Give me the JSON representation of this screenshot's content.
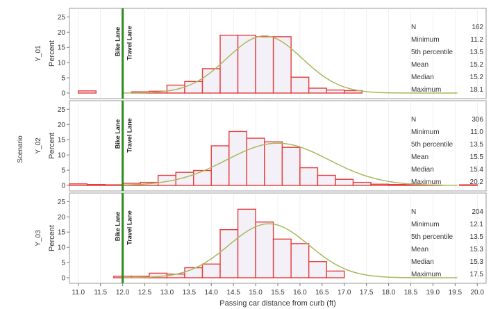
{
  "chart_data": {
    "type": "bar",
    "xlabel": "Passing car distance from curb (ft)",
    "scenario_label": "Scenario",
    "ylabel": "Percent",
    "x_ticks": [
      "11.0",
      "11.5",
      "12.0",
      "12.5",
      "13.0",
      "13.5",
      "14.0",
      "14.5",
      "15.0",
      "15.5",
      "16.0",
      "16.5",
      "17.0",
      "17.5",
      "18.0",
      "18.5",
      "19.0",
      "19.5",
      "20.0"
    ],
    "xlim": [
      10.8,
      20.2
    ],
    "ylim": [
      0,
      26
    ],
    "y_ticks": [
      0,
      5,
      10,
      15,
      20,
      25
    ],
    "bin_width": 0.4,
    "lane_line_x": 12.0,
    "lane_left_label": "Bike Lane",
    "lane_right_label": "Travel Lane",
    "colors": {
      "bar_edge": "#e63c3c",
      "bar_fill": "#f4f0f8",
      "curve": "#a8b85a",
      "lane_line": "#2e8b1e",
      "panel_border": "#9a9a9a",
      "grid": "#e6e6e6"
    },
    "panels": [
      {
        "name": "Y_01",
        "bins": [
          {
            "x": 11.0,
            "y": 0.7
          },
          {
            "x": 12.2,
            "y": 0.4
          },
          {
            "x": 12.6,
            "y": 0.6
          },
          {
            "x": 13.0,
            "y": 2.6
          },
          {
            "x": 13.4,
            "y": 3.8
          },
          {
            "x": 13.8,
            "y": 8.0
          },
          {
            "x": 14.2,
            "y": 19.0
          },
          {
            "x": 14.6,
            "y": 19.0
          },
          {
            "x": 15.0,
            "y": 18.5
          },
          {
            "x": 15.4,
            "y": 18.5
          },
          {
            "x": 15.8,
            "y": 5.2
          },
          {
            "x": 16.2,
            "y": 1.6
          },
          {
            "x": 16.6,
            "y": 1.0
          },
          {
            "x": 17.0,
            "y": 0.8
          }
        ],
        "curve": {
          "mean": 15.2,
          "sd": 0.85
        },
        "stats": [
          {
            "label": "N",
            "value": "162"
          },
          {
            "label": "Minimum",
            "value": "11.2"
          },
          {
            "label": "5th percentile",
            "value": "13.5"
          },
          {
            "label": "Mean",
            "value": "15.2"
          },
          {
            "label": "Median",
            "value": "15.2"
          },
          {
            "label": "Maximum",
            "value": "18.1"
          }
        ]
      },
      {
        "name": "Y_02",
        "bins": [
          {
            "x": 10.8,
            "y": 0.5
          },
          {
            "x": 11.2,
            "y": 0.3
          },
          {
            "x": 11.6,
            "y": 0.2
          },
          {
            "x": 12.0,
            "y": 0.7
          },
          {
            "x": 12.4,
            "y": 1.0
          },
          {
            "x": 12.8,
            "y": 3.3
          },
          {
            "x": 13.2,
            "y": 4.3
          },
          {
            "x": 13.6,
            "y": 4.9
          },
          {
            "x": 14.0,
            "y": 13.0
          },
          {
            "x": 14.4,
            "y": 17.7
          },
          {
            "x": 14.8,
            "y": 15.5
          },
          {
            "x": 15.2,
            "y": 14.3
          },
          {
            "x": 15.6,
            "y": 12.5
          },
          {
            "x": 16.0,
            "y": 5.8
          },
          {
            "x": 16.4,
            "y": 3.3
          },
          {
            "x": 16.8,
            "y": 2.0
          },
          {
            "x": 17.2,
            "y": 1.0
          },
          {
            "x": 17.6,
            "y": 0.4
          },
          {
            "x": 18.0,
            "y": 0.3
          },
          {
            "x": 18.4,
            "y": 0.2
          },
          {
            "x": 18.8,
            "y": 0.1
          },
          {
            "x": 19.6,
            "y": 0.2
          }
        ],
        "curve": {
          "mean": 15.5,
          "sd": 1.15
        },
        "stats": [
          {
            "label": "N",
            "value": "306"
          },
          {
            "label": "Minimum",
            "value": "11.0"
          },
          {
            "label": "5th percentile",
            "value": "13.5"
          },
          {
            "label": "Mean",
            "value": "15.5"
          },
          {
            "label": "Median",
            "value": "15.4"
          },
          {
            "label": "Maximum",
            "value": "20.2"
          }
        ]
      },
      {
        "name": "Y_03",
        "bins": [
          {
            "x": 11.8,
            "y": 0.5
          },
          {
            "x": 12.2,
            "y": 0.5
          },
          {
            "x": 12.6,
            "y": 1.5
          },
          {
            "x": 13.0,
            "y": 1.2
          },
          {
            "x": 13.4,
            "y": 3.3
          },
          {
            "x": 13.8,
            "y": 4.5
          },
          {
            "x": 14.2,
            "y": 15.8
          },
          {
            "x": 14.6,
            "y": 22.5
          },
          {
            "x": 15.0,
            "y": 18.3
          },
          {
            "x": 15.4,
            "y": 12.7
          },
          {
            "x": 15.8,
            "y": 11.2
          },
          {
            "x": 16.2,
            "y": 5.3
          },
          {
            "x": 16.6,
            "y": 2.2
          }
        ],
        "curve": {
          "mean": 15.3,
          "sd": 0.9
        },
        "stats": [
          {
            "label": "N",
            "value": "204"
          },
          {
            "label": "Minimum",
            "value": "12.1"
          },
          {
            "label": "5th percentile",
            "value": "13.5"
          },
          {
            "label": "Mean",
            "value": "15.3"
          },
          {
            "label": "Median",
            "value": "15.3"
          },
          {
            "label": "Maximum",
            "value": "17.5"
          }
        ]
      }
    ]
  }
}
